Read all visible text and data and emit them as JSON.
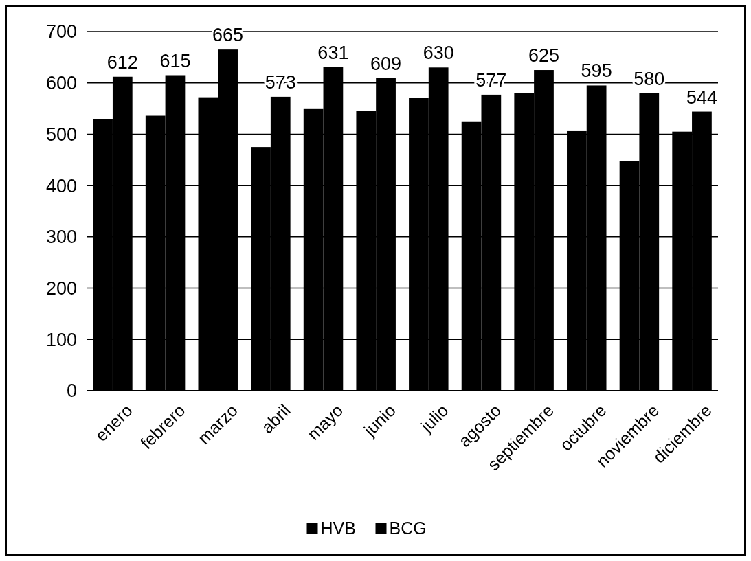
{
  "chart_data": {
    "type": "bar",
    "categories": [
      "enero",
      "febrero",
      "marzo",
      "abril",
      "mayo",
      "junio",
      "julio",
      "agosto",
      "septiembre",
      "octubre",
      "noviembre",
      "diciembre"
    ],
    "series": [
      {
        "name": "HVB",
        "color": "#000000",
        "values": [
          530,
          536,
          572,
          475,
          549,
          545,
          571,
          525,
          580,
          506,
          448,
          505
        ]
      },
      {
        "name": "BCG",
        "color": "#000000",
        "values": [
          612,
          615,
          665,
          573,
          631,
          609,
          630,
          577,
          625,
          595,
          580,
          544
        ],
        "value_labels": [
          "612",
          "615",
          "665",
          "573",
          "631",
          "609",
          "630",
          "577",
          "625",
          "595",
          "580",
          "544"
        ]
      }
    ],
    "ylim": [
      0,
      700
    ],
    "yticks": [
      0,
      100,
      200,
      300,
      400,
      500,
      600,
      700
    ],
    "grid": "y",
    "legend": "bottom"
  }
}
